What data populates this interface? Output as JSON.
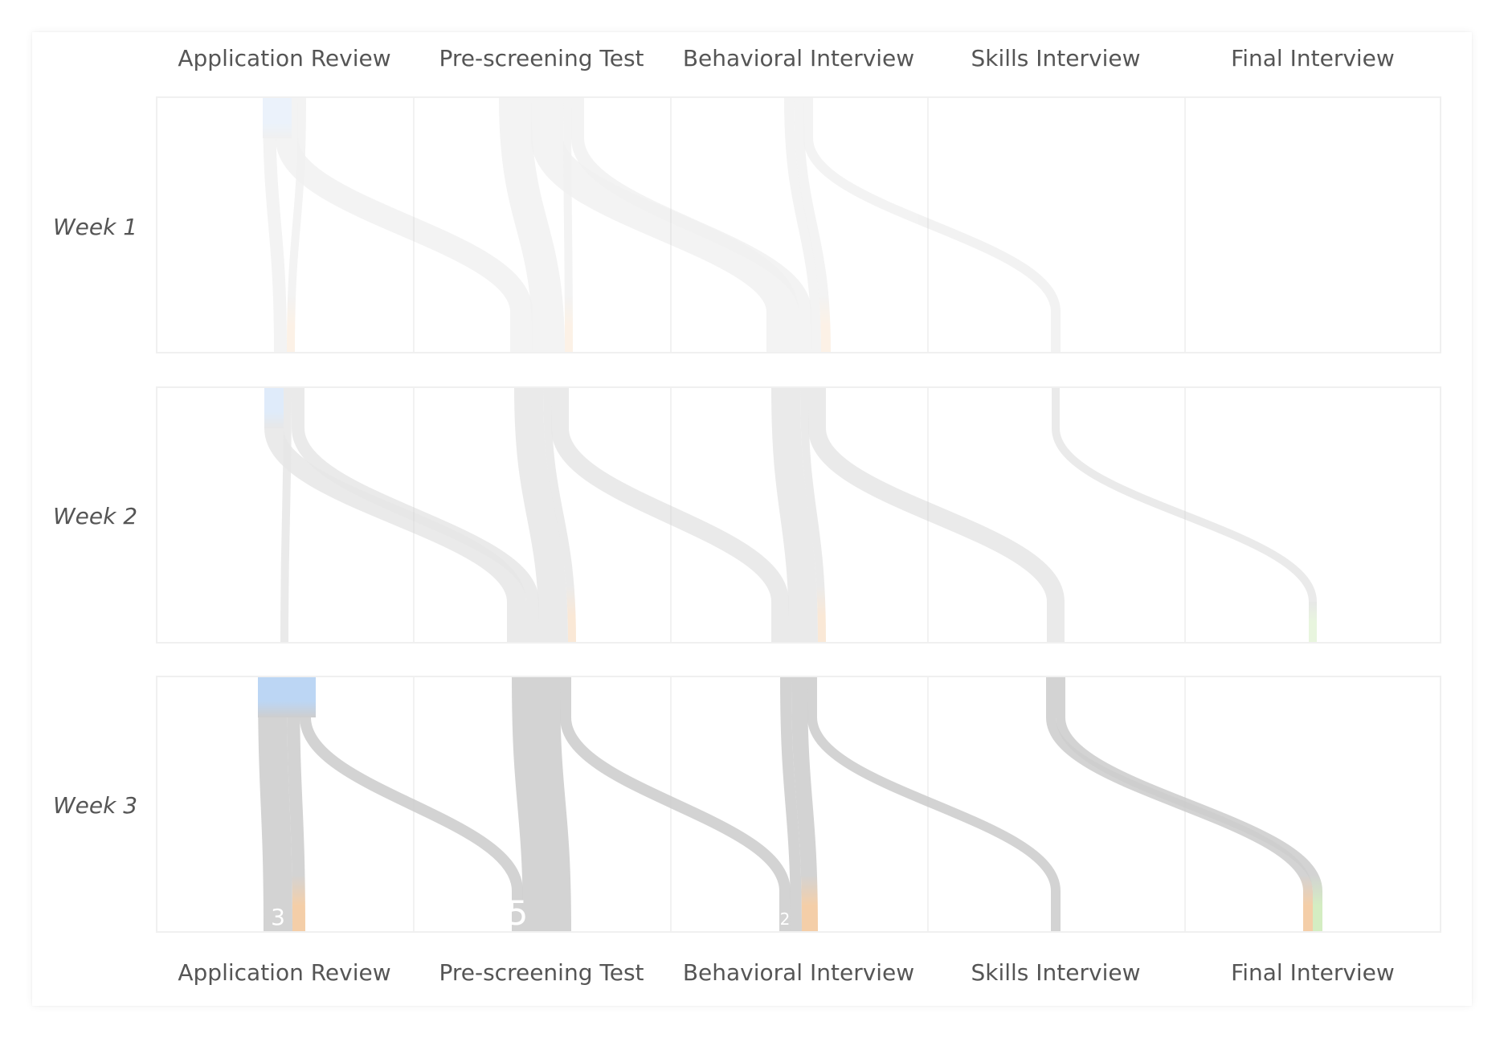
{
  "stages": [
    "Application Review",
    "Pre-screening Test",
    "Behavioral Interview",
    "Skills Interview",
    "Final Interview"
  ],
  "weeks": [
    "Week 1",
    "Week 2",
    "Week 3"
  ],
  "colors": {
    "flow": "#cccccc",
    "applied": "#b9d4f4",
    "rejected": "#f3c79a",
    "hired": "#cdeab8"
  },
  "rows": [
    {
      "name": "Week 1",
      "opacity": 0.28,
      "flows": [
        {
          "from": 0,
          "to": 0,
          "w": 16
        },
        {
          "from": 0,
          "to": 1,
          "w": 28
        },
        {
          "from": 0,
          "to": 0,
          "w": 10,
          "end": "rejected"
        },
        {
          "from": 1,
          "to": 1,
          "w": 40
        },
        {
          "from": 1,
          "to": 2,
          "w": 40
        },
        {
          "from": 1,
          "to": 1,
          "w": 10,
          "end": "rejected"
        },
        {
          "from": 1,
          "to": 2,
          "w": 16
        },
        {
          "from": 2,
          "to": 2,
          "w": 12
        },
        {
          "from": 2,
          "to": 2,
          "w": 12,
          "end": "rejected"
        },
        {
          "from": 2,
          "to": 3,
          "w": 12
        }
      ],
      "starts": [
        {
          "stage": 0,
          "w": 36,
          "color": "applied"
        }
      ],
      "labels": []
    },
    {
      "name": "Week 2",
      "opacity": 0.45,
      "flows": [
        {
          "from": 0,
          "to": 1,
          "w": 24
        },
        {
          "from": 0,
          "to": 0,
          "w": 10
        },
        {
          "from": 0,
          "to": 1,
          "w": 16
        },
        {
          "from": 1,
          "to": 1,
          "w": 36
        },
        {
          "from": 1,
          "to": 1,
          "w": 10,
          "end": "rejected"
        },
        {
          "from": 1,
          "to": 2,
          "w": 22
        },
        {
          "from": 2,
          "to": 2,
          "w": 36
        },
        {
          "from": 2,
          "to": 2,
          "w": 10,
          "end": "rejected"
        },
        {
          "from": 2,
          "to": 3,
          "w": 22
        },
        {
          "from": 3,
          "to": 4,
          "w": 10
        }
      ],
      "starts": [
        {
          "stage": 0,
          "w": 24,
          "color": "applied"
        }
      ],
      "ends": [
        {
          "stage": 4,
          "color": "hired"
        }
      ],
      "labels": []
    },
    {
      "name": "Week 3",
      "opacity": 0.95,
      "flows": [
        {
          "from": 0,
          "to": 0,
          "w": 36
        },
        {
          "from": 0,
          "to": 0,
          "w": 16,
          "end": "rejected"
        },
        {
          "from": 0,
          "to": 1,
          "w": 14
        },
        {
          "from": 1,
          "to": 1,
          "w": 60
        },
        {
          "from": 1,
          "to": 2,
          "w": 14
        },
        {
          "from": 2,
          "to": 2,
          "w": 14
        },
        {
          "from": 2,
          "to": 2,
          "w": 20,
          "end": "rejected"
        },
        {
          "from": 2,
          "to": 3,
          "w": 12
        },
        {
          "from": 3,
          "to": 4,
          "w": 12,
          "end": "rejected"
        },
        {
          "from": 3,
          "to": 4,
          "w": 12,
          "end": "hired"
        }
      ],
      "starts": [
        {
          "stage": 0,
          "w": 72,
          "color": "applied"
        }
      ],
      "labels": [
        {
          "stage": 0,
          "text": "3",
          "size": 28
        },
        {
          "stage": 1,
          "text": "5",
          "size": 42
        },
        {
          "stage": 2,
          "text": "2",
          "size": 20
        }
      ]
    }
  ]
}
